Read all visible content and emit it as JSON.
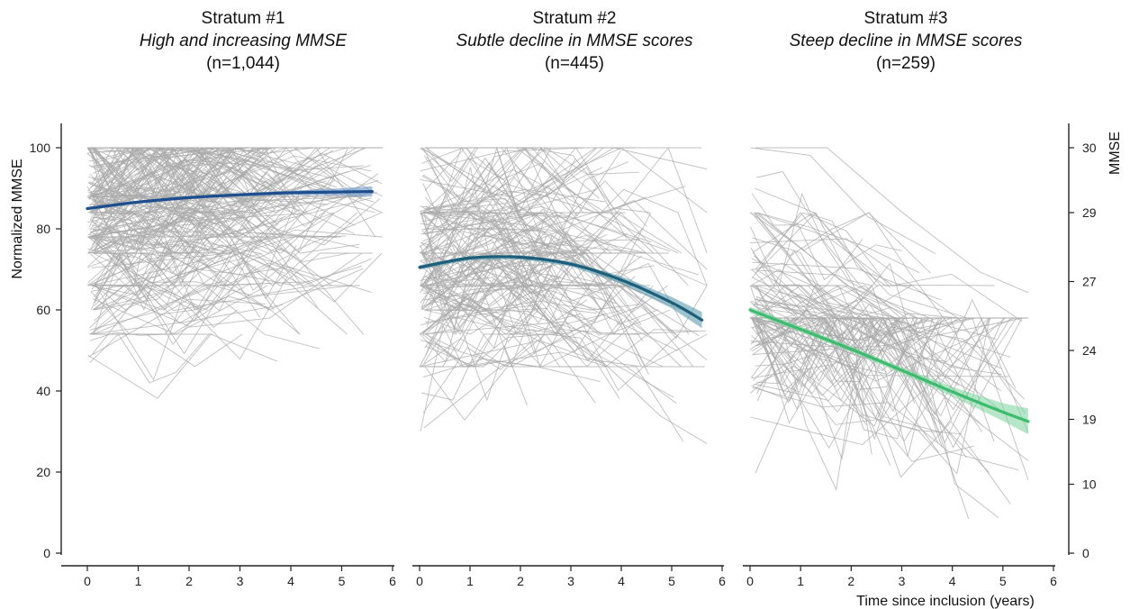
{
  "chart_data": {
    "type": "line",
    "y_axis_left": {
      "label": "Normalized MMSE",
      "range": [
        0,
        100
      ],
      "ticks": [
        0,
        20,
        40,
        60,
        80,
        100
      ]
    },
    "y_axis_right": {
      "label": "MMSE",
      "ticks": [
        {
          "label": "30",
          "normalized": 100
        },
        {
          "label": "29",
          "normalized": 84
        },
        {
          "label": "27",
          "normalized": 67
        },
        {
          "label": "24",
          "normalized": 50
        },
        {
          "label": "19",
          "normalized": 33
        },
        {
          "label": "10",
          "normalized": 17
        },
        {
          "label": "0",
          "normalized": 0
        }
      ]
    },
    "x_axis": {
      "label": "Time since inclusion (years)",
      "range": [
        0,
        6
      ],
      "ticks": [
        0,
        1,
        2,
        3,
        4,
        5,
        6
      ]
    },
    "grid": false,
    "panels": [
      {
        "title": "Stratum #1",
        "subtitle": "High and increasing MMSE",
        "n_label": "(n=1,044)",
        "trend_color": "#1f4e8c",
        "band_color": "#5b8cc4",
        "trend": {
          "x": [
            0,
            1,
            2,
            3,
            4,
            5,
            5.6
          ],
          "y": [
            85.0,
            86.6,
            87.7,
            88.4,
            88.9,
            89.1,
            89.2
          ]
        },
        "trend_ci_halfwidth": [
          0.4,
          0.4,
          0.4,
          0.4,
          0.5,
          0.9,
          1.3
        ],
        "individuals": {
          "count": 230,
          "y_min": 35,
          "y_max": 100,
          "y_center": 80,
          "spread": 14,
          "x_max": 5.8,
          "levels": [
            100,
            88,
            84,
            78,
            74,
            66,
            60,
            54
          ]
        }
      },
      {
        "title": "Stratum #2",
        "subtitle": "Subtle decline in MMSE scores",
        "n_label": "(n=445)",
        "trend_color": "#1d5f7a",
        "band_color": "#4f93a9",
        "trend": {
          "x": [
            0,
            1,
            2,
            3,
            4,
            5,
            5.6
          ],
          "y": [
            70.5,
            72.8,
            73.0,
            71.3,
            67.4,
            61.8,
            57.5
          ]
        },
        "trend_ci_halfwidth": [
          0.6,
          0.5,
          0.5,
          0.6,
          0.9,
          1.4,
          2.0
        ],
        "individuals": {
          "count": 160,
          "y_min": 27,
          "y_max": 100,
          "y_center": 68,
          "spread": 14,
          "x_max": 5.7,
          "levels": [
            100,
            84,
            74,
            66,
            60,
            54,
            46
          ]
        }
      },
      {
        "title": "Stratum #3",
        "subtitle": "Steep decline in MMSE scores",
        "n_label": "(n=259)",
        "trend_color": "#3dbb6e",
        "band_color": "#7ad39c",
        "trend": {
          "x": [
            0,
            1,
            2,
            3,
            4,
            5,
            5.5
          ],
          "y": [
            60.0,
            55.2,
            50.3,
            45.1,
            39.8,
            34.8,
            32.5
          ]
        },
        "trend_ci_halfwidth": [
          0.8,
          0.7,
          0.7,
          0.8,
          1.2,
          2.2,
          3.2
        ],
        "individuals": {
          "count": 120,
          "y_min": 8,
          "y_max": 100,
          "y_center": 50,
          "spread": 12,
          "x_max": 5.5,
          "levels": [
            100,
            84,
            66,
            58
          ]
        }
      }
    ]
  }
}
